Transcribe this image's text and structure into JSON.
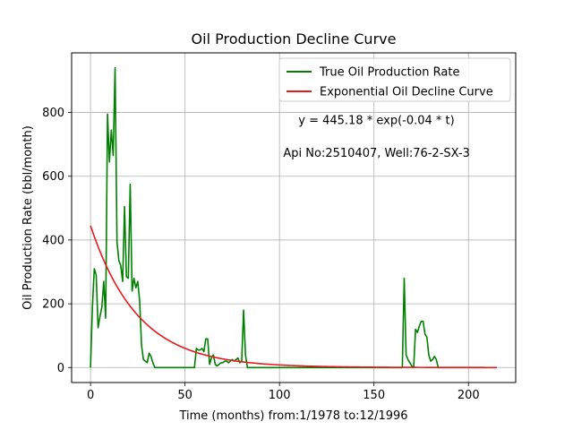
{
  "chart_data": {
    "type": "line",
    "title": "Oil Production Decline Curve",
    "xlabel": "Time (months) from:1/1978 to:12/1996",
    "ylabel": "Oil Production Rate (bbl/month)",
    "xlim": [
      -10,
      225
    ],
    "ylim": [
      -47,
      987
    ],
    "xticks": [
      0,
      50,
      100,
      150,
      200
    ],
    "yticks": [
      0,
      200,
      400,
      600,
      800
    ],
    "grid": true,
    "legend_position": "top-right",
    "annotations": [
      {
        "text": "y = 445.18 * exp(-0.04 * t)",
        "x": 110,
        "y": 775
      },
      {
        "text": "Api No:2510407, Well:76-2-SX-3",
        "x": 102,
        "y": 673
      }
    ],
    "series": [
      {
        "name": "True Oil Production Rate",
        "color": "#008000",
        "x": [
          0,
          1,
          2,
          3,
          4,
          5,
          6,
          7,
          8,
          9,
          10,
          11,
          12,
          13,
          14,
          15,
          16,
          17,
          18,
          19,
          20,
          21,
          22,
          23,
          24,
          25,
          26,
          27,
          28,
          29,
          30,
          31,
          32,
          33,
          34,
          35,
          36,
          40,
          45,
          50,
          55,
          56,
          57,
          58,
          59,
          60,
          61,
          62,
          63,
          64,
          65,
          66,
          67,
          68,
          69,
          70,
          71,
          72,
          73,
          74,
          75,
          76,
          77,
          78,
          79,
          80,
          81,
          82,
          83,
          85,
          90,
          100,
          110,
          120,
          130,
          140,
          150,
          160,
          165,
          166,
          167,
          168,
          169,
          170,
          171,
          172,
          173,
          174,
          175,
          176,
          177,
          178,
          179,
          180,
          181,
          182,
          183,
          184,
          185,
          186,
          190,
          200,
          210,
          215
        ],
        "values": [
          0,
          190,
          310,
          290,
          125,
          160,
          190,
          270,
          155,
          795,
          645,
          745,
          665,
          940,
          395,
          335,
          320,
          270,
          505,
          285,
          280,
          575,
          240,
          280,
          250,
          270,
          210,
          70,
          25,
          20,
          15,
          45,
          35,
          15,
          0,
          0,
          0,
          0,
          0,
          0,
          0,
          60,
          55,
          55,
          60,
          50,
          90,
          90,
          10,
          30,
          40,
          10,
          5,
          10,
          15,
          15,
          20,
          20,
          15,
          20,
          25,
          20,
          25,
          30,
          15,
          20,
          180,
          40,
          0,
          0,
          0,
          0,
          0,
          0,
          0,
          0,
          0,
          0,
          0,
          280,
          40,
          25,
          15,
          5,
          0,
          120,
          110,
          130,
          145,
          145,
          105,
          95,
          40,
          20,
          25,
          35,
          25,
          0,
          0,
          0,
          0,
          0,
          0,
          0
        ]
      },
      {
        "name": "Exponential Oil Decline Curve",
        "color": "#e31a1c",
        "equation": {
          "a": 445.18,
          "b": -0.04
        },
        "x_start": 0,
        "x_end": 215
      }
    ]
  }
}
